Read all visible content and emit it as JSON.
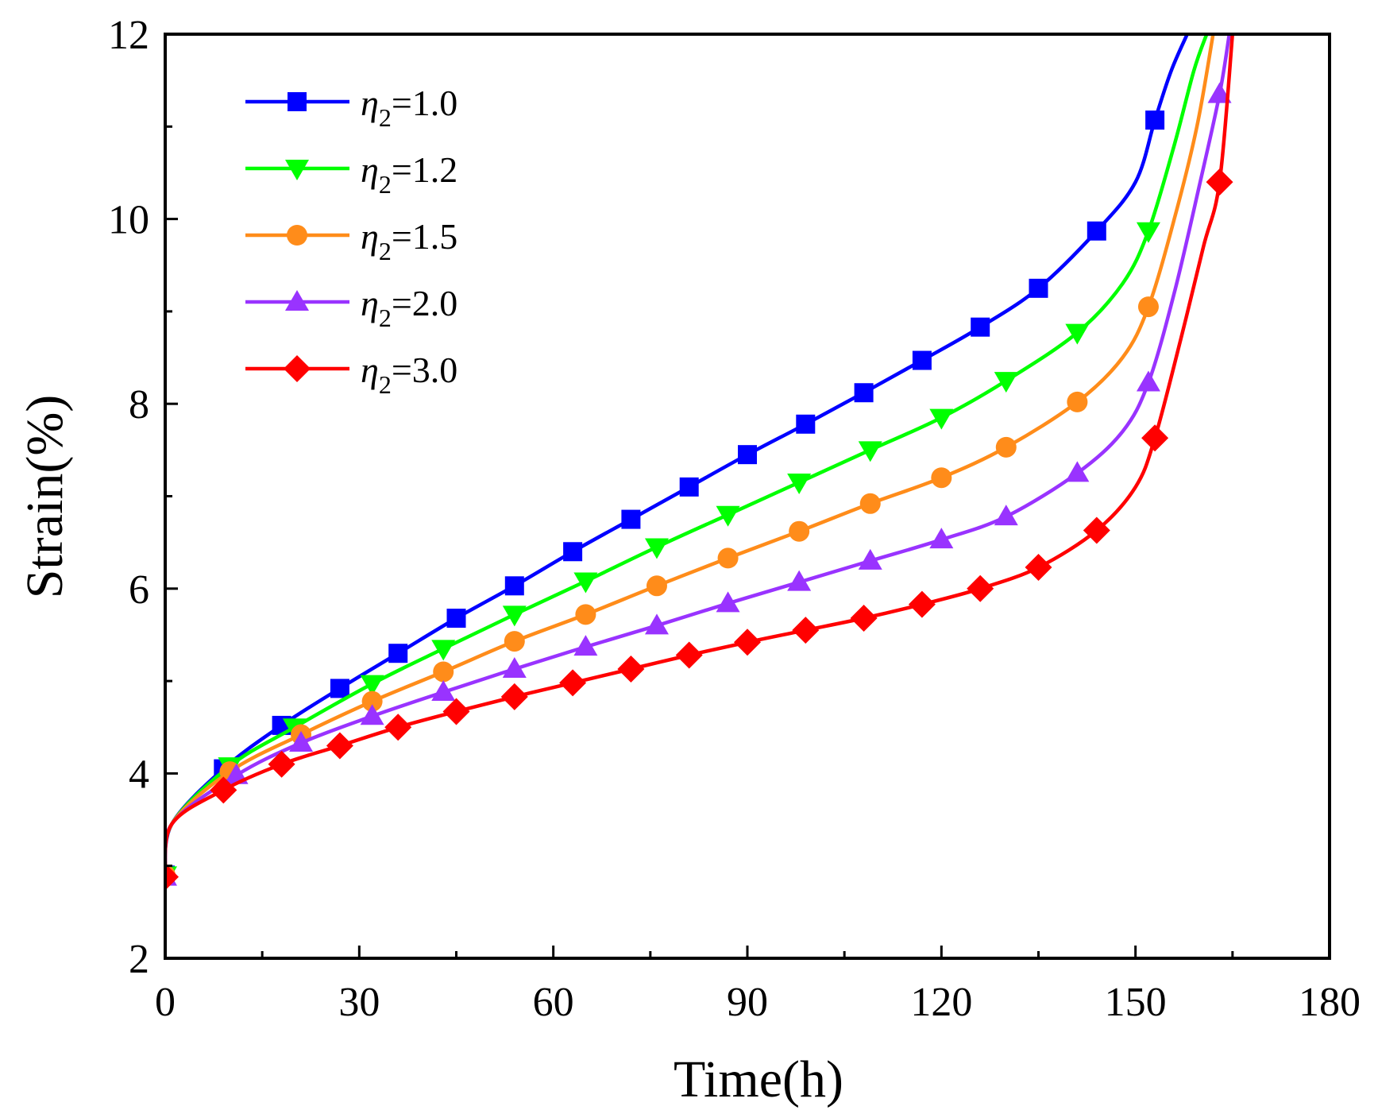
{
  "chart_data": {
    "type": "line",
    "title": "",
    "xlabel": "Time(h)",
    "ylabel": "Strain(%)",
    "xlim": [
      0,
      180
    ],
    "ylim": [
      2,
      12
    ],
    "xticks": [
      0,
      30,
      60,
      90,
      120,
      150,
      180
    ],
    "yticks": [
      2,
      4,
      6,
      8,
      10,
      12
    ],
    "x_tick_labels": [
      "0",
      "30",
      "60",
      "90",
      "120",
      "150",
      "180"
    ],
    "y_tick_labels": [
      "2",
      "4",
      "6",
      "8",
      "10",
      "12"
    ],
    "grid": false,
    "legend_position": "top-left",
    "series": [
      {
        "name": "η2=1.0",
        "legend_symbol": "η",
        "legend_subscript": "2",
        "legend_value": "=1.0",
        "color": "#0000ff",
        "marker": "square",
        "x": [
          0,
          9,
          18,
          27,
          36,
          45,
          54,
          63,
          72,
          81,
          90,
          99,
          108,
          117,
          126,
          135,
          144,
          153
        ],
        "y": [
          2.9,
          4.05,
          4.52,
          4.92,
          5.3,
          5.68,
          6.03,
          6.4,
          6.75,
          7.1,
          7.45,
          7.78,
          8.12,
          8.47,
          8.83,
          9.25,
          9.87,
          11.07
        ],
        "curve": [
          [
            0,
            2.9
          ],
          [
            1,
            3.45
          ],
          [
            9,
            4.05
          ],
          [
            18,
            4.52
          ],
          [
            27,
            4.92
          ],
          [
            36,
            5.3
          ],
          [
            45,
            5.68
          ],
          [
            54,
            6.03
          ],
          [
            63,
            6.4
          ],
          [
            72,
            6.75
          ],
          [
            81,
            7.1
          ],
          [
            90,
            7.45
          ],
          [
            99,
            7.78
          ],
          [
            108,
            8.12
          ],
          [
            117,
            8.47
          ],
          [
            126,
            8.83
          ],
          [
            135,
            9.25
          ],
          [
            144,
            9.87
          ],
          [
            150,
            10.4
          ],
          [
            153,
            11.07
          ],
          [
            155.5,
            11.6
          ],
          [
            158,
            12.0
          ]
        ]
      },
      {
        "name": "η2=1.2",
        "legend_symbol": "η",
        "legend_subscript": "2",
        "legend_value": "=1.2",
        "color": "#00ff00",
        "marker": "triangle-down",
        "x": [
          0,
          10,
          20,
          32,
          43,
          54,
          65,
          76,
          87,
          98,
          109,
          120,
          130,
          141,
          152
        ],
        "y": [
          2.9,
          4.08,
          4.5,
          4.97,
          5.35,
          5.72,
          6.08,
          6.45,
          6.8,
          7.15,
          7.5,
          7.85,
          8.25,
          8.77,
          9.87
        ],
        "curve": [
          [
            0,
            2.9
          ],
          [
            1,
            3.45
          ],
          [
            10,
            4.08
          ],
          [
            20,
            4.5
          ],
          [
            32,
            4.97
          ],
          [
            43,
            5.35
          ],
          [
            54,
            5.72
          ],
          [
            65,
            6.08
          ],
          [
            76,
            6.45
          ],
          [
            87,
            6.8
          ],
          [
            98,
            7.15
          ],
          [
            109,
            7.5
          ],
          [
            120,
            7.85
          ],
          [
            130,
            8.25
          ],
          [
            141,
            8.77
          ],
          [
            148,
            9.3
          ],
          [
            152,
            9.87
          ],
          [
            156,
            10.8
          ],
          [
            159,
            11.6
          ],
          [
            161,
            12.0
          ]
        ]
      },
      {
        "name": "η2=1.5",
        "legend_symbol": "η",
        "legend_subscript": "2",
        "legend_value": "=1.5",
        "color": "#ff8c1a",
        "marker": "circle",
        "x": [
          0,
          10,
          21,
          32,
          43,
          54,
          65,
          76,
          87,
          98,
          109,
          120,
          130,
          141,
          152
        ],
        "y": [
          2.9,
          4.02,
          4.42,
          4.78,
          5.1,
          5.43,
          5.72,
          6.03,
          6.33,
          6.62,
          6.92,
          7.2,
          7.53,
          8.02,
          9.05
        ],
        "curve": [
          [
            0,
            2.9
          ],
          [
            1,
            3.45
          ],
          [
            10,
            4.02
          ],
          [
            21,
            4.42
          ],
          [
            32,
            4.78
          ],
          [
            43,
            5.1
          ],
          [
            54,
            5.43
          ],
          [
            65,
            5.72
          ],
          [
            76,
            6.03
          ],
          [
            87,
            6.33
          ],
          [
            98,
            6.62
          ],
          [
            109,
            6.92
          ],
          [
            120,
            7.2
          ],
          [
            130,
            7.53
          ],
          [
            141,
            8.02
          ],
          [
            148,
            8.5
          ],
          [
            152,
            9.05
          ],
          [
            156,
            10.0
          ],
          [
            159.5,
            11.0
          ],
          [
            162,
            12.0
          ]
        ]
      },
      {
        "name": "η2=2.0",
        "legend_symbol": "η",
        "legend_subscript": "2",
        "legend_value": "=2.0",
        "color": "#9933ff",
        "marker": "triangle-up",
        "x": [
          0,
          11,
          21,
          32,
          43,
          54,
          65,
          76,
          87,
          98,
          109,
          120,
          130,
          141,
          152,
          163
        ],
        "y": [
          2.88,
          3.98,
          4.33,
          4.62,
          4.88,
          5.13,
          5.37,
          5.6,
          5.84,
          6.07,
          6.3,
          6.53,
          6.78,
          7.25,
          8.23,
          11.35
        ],
        "curve": [
          [
            0,
            2.88
          ],
          [
            1,
            3.45
          ],
          [
            11,
            3.98
          ],
          [
            21,
            4.33
          ],
          [
            32,
            4.62
          ],
          [
            43,
            4.88
          ],
          [
            54,
            5.13
          ],
          [
            65,
            5.37
          ],
          [
            76,
            5.6
          ],
          [
            87,
            5.84
          ],
          [
            98,
            6.07
          ],
          [
            109,
            6.3
          ],
          [
            120,
            6.53
          ],
          [
            130,
            6.78
          ],
          [
            141,
            7.25
          ],
          [
            148,
            7.7
          ],
          [
            152,
            8.23
          ],
          [
            156,
            9.2
          ],
          [
            160,
            10.4
          ],
          [
            163,
            11.35
          ],
          [
            164.5,
            12.0
          ]
        ]
      },
      {
        "name": "η2=3.0",
        "legend_symbol": "η",
        "legend_subscript": "2",
        "legend_value": "=3.0",
        "color": "#ff0000",
        "marker": "diamond",
        "x": [
          0,
          9,
          18,
          27,
          36,
          45,
          54,
          63,
          72,
          81,
          90,
          99,
          108,
          117,
          126,
          135,
          144,
          153,
          163
        ],
        "y": [
          2.88,
          3.82,
          4.1,
          4.3,
          4.5,
          4.67,
          4.83,
          4.98,
          5.13,
          5.28,
          5.42,
          5.55,
          5.68,
          5.83,
          6.0,
          6.23,
          6.63,
          7.63,
          10.4
        ],
        "curve": [
          [
            0,
            2.88
          ],
          [
            1,
            3.45
          ],
          [
            9,
            3.82
          ],
          [
            18,
            4.1
          ],
          [
            27,
            4.3
          ],
          [
            36,
            4.5
          ],
          [
            45,
            4.67
          ],
          [
            54,
            4.83
          ],
          [
            63,
            4.98
          ],
          [
            72,
            5.13
          ],
          [
            81,
            5.28
          ],
          [
            90,
            5.42
          ],
          [
            99,
            5.55
          ],
          [
            108,
            5.68
          ],
          [
            117,
            5.83
          ],
          [
            126,
            6.0
          ],
          [
            135,
            6.23
          ],
          [
            144,
            6.63
          ],
          [
            150,
            7.1
          ],
          [
            153,
            7.63
          ],
          [
            157,
            8.7
          ],
          [
            160.5,
            9.7
          ],
          [
            163,
            10.4
          ],
          [
            165,
            12.0
          ]
        ]
      }
    ]
  }
}
